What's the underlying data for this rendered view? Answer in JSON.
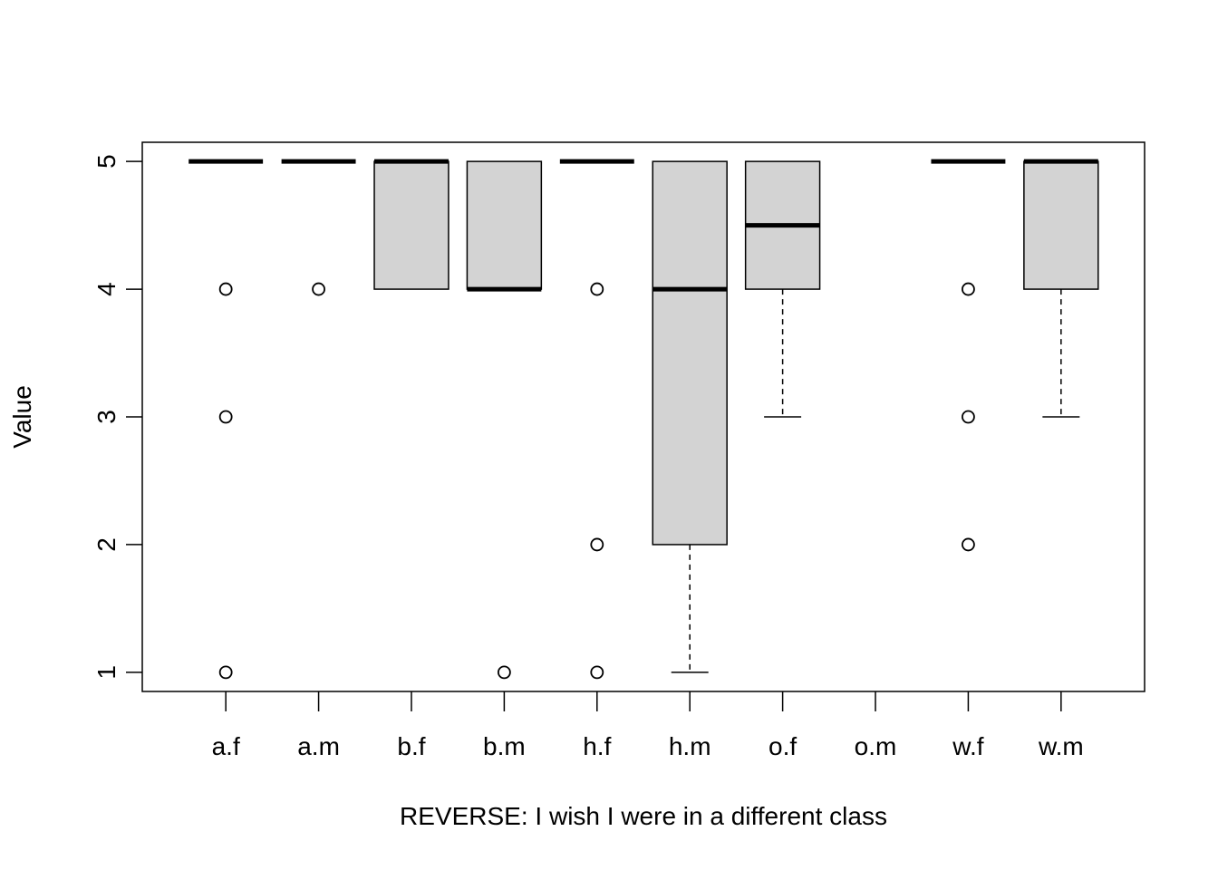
{
  "chart_data": {
    "type": "boxplot",
    "title": "",
    "xlabel": "REVERSE: I wish I were in a different class",
    "ylabel": "Value",
    "ylim": [
      0.85,
      5.15
    ],
    "yticks": [
      1,
      2,
      3,
      4,
      5
    ],
    "grid": false,
    "colors": {
      "box_fill": "#d3d3d3",
      "stroke": "#000000"
    },
    "categories": [
      "a.f",
      "a.m",
      "b.f",
      "b.m",
      "h.f",
      "h.m",
      "o.f",
      "o.m",
      "w.f",
      "w.m"
    ],
    "boxes": [
      {
        "category": "a.f",
        "whisker_low": 5,
        "q1": 5,
        "median": 5,
        "q3": 5,
        "whisker_high": 5,
        "outliers": [
          4,
          3,
          1
        ]
      },
      {
        "category": "a.m",
        "whisker_low": 5,
        "q1": 5,
        "median": 5,
        "q3": 5,
        "whisker_high": 5,
        "outliers": [
          4
        ]
      },
      {
        "category": "b.f",
        "whisker_low": 4,
        "q1": 4,
        "median": 5,
        "q3": 5,
        "whisker_high": 5,
        "outliers": []
      },
      {
        "category": "b.m",
        "whisker_low": 4,
        "q1": 4,
        "median": 4,
        "q3": 5,
        "whisker_high": 5,
        "outliers": [
          1
        ]
      },
      {
        "category": "h.f",
        "whisker_low": 5,
        "q1": 5,
        "median": 5,
        "q3": 5,
        "whisker_high": 5,
        "outliers": [
          4,
          2,
          1
        ]
      },
      {
        "category": "h.m",
        "whisker_low": 1,
        "q1": 2,
        "median": 4,
        "q3": 5,
        "whisker_high": 5,
        "outliers": []
      },
      {
        "category": "o.f",
        "whisker_low": 3,
        "q1": 4,
        "median": 4.5,
        "q3": 5,
        "whisker_high": 5,
        "outliers": []
      },
      {
        "category": "o.m",
        "empty": true
      },
      {
        "category": "w.f",
        "whisker_low": 5,
        "q1": 5,
        "median": 5,
        "q3": 5,
        "whisker_high": 5,
        "outliers": [
          4,
          3,
          2
        ]
      },
      {
        "category": "w.m",
        "whisker_low": 3,
        "q1": 4,
        "median": 5,
        "q3": 5,
        "whisker_high": 5,
        "outliers": []
      }
    ]
  }
}
